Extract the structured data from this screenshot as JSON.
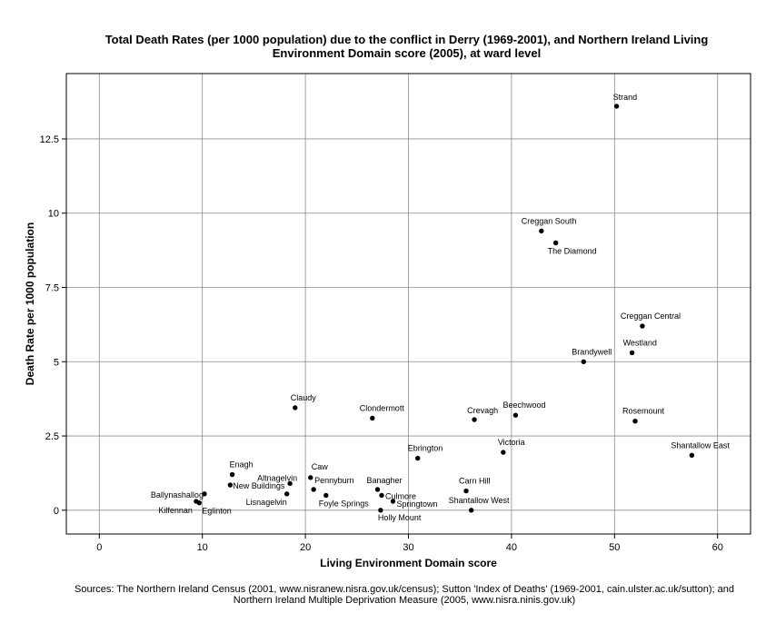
{
  "title_lines": [
    "Total Death Rates (per 1000 population) due to the conflict in Derry (1969-2001), and Northern Ireland Living",
    "Environment Domain score (2005), at ward level"
  ],
  "footer_lines": [
    "Sources: The Northern Ireland Census (2001, www.nisranew.nisra.gov.uk/census); Sutton 'Index of Deaths' (1969-2001, cain.ulster.ac.uk/sutton); and",
    "Northern Ireland Multiple Deprivation Measure (2005, www.nisra.ninis.gov.uk)"
  ],
  "chart_data": {
    "type": "scatter",
    "xlabel": "Living Environment Domain score",
    "ylabel": "Death Rate per 1000 population",
    "xlim": [
      -3.2,
      63.2
    ],
    "ylim": [
      -0.8,
      14.7
    ],
    "xticks": [
      0,
      10,
      20,
      30,
      40,
      50,
      60
    ],
    "xtick_labels": [
      "0",
      "10",
      "20",
      "30",
      "40",
      "50",
      "60"
    ],
    "yticks": [
      0,
      2.5,
      5,
      7.5,
      10,
      12.5
    ],
    "ytick_labels": [
      "0",
      "2.5",
      "5",
      "7.5",
      "10",
      "12.5"
    ],
    "grid": true,
    "marker_color": "#000000",
    "points": [
      {
        "label": "Strand",
        "x": 50.2,
        "y": 13.6
      },
      {
        "label": "Creggan South",
        "x": 42.9,
        "y": 9.4
      },
      {
        "label": "The Diamond",
        "x": 44.3,
        "y": 9.0
      },
      {
        "label": "Creggan Central",
        "x": 52.7,
        "y": 6.2
      },
      {
        "label": "Westland",
        "x": 51.7,
        "y": 5.3
      },
      {
        "label": "Brandywell",
        "x": 47.0,
        "y": 5.0
      },
      {
        "label": "Rosemount",
        "x": 52.0,
        "y": 3.0
      },
      {
        "label": "Beechwood",
        "x": 40.4,
        "y": 3.2
      },
      {
        "label": "Crevagh",
        "x": 36.4,
        "y": 3.05
      },
      {
        "label": "Shantallow East",
        "x": 57.5,
        "y": 1.85
      },
      {
        "label": "Victoria",
        "x": 39.2,
        "y": 1.95
      },
      {
        "label": "Ebrington",
        "x": 30.9,
        "y": 1.75
      },
      {
        "label": "Claudy",
        "x": 19.0,
        "y": 3.45
      },
      {
        "label": "Clondermott",
        "x": 26.5,
        "y": 3.1
      },
      {
        "label": "Carn Hill",
        "x": 35.6,
        "y": 0.65
      },
      {
        "label": "Shantallow West",
        "x": 36.1,
        "y": 0.0
      },
      {
        "label": "Banagher",
        "x": 27.0,
        "y": 0.7
      },
      {
        "label": "Culmore",
        "x": 27.4,
        "y": 0.5
      },
      {
        "label": "Springtown",
        "x": 28.5,
        "y": 0.3
      },
      {
        "label": "Holly Mount",
        "x": 27.3,
        "y": 0.0
      },
      {
        "label": "Caw",
        "x": 20.5,
        "y": 1.1
      },
      {
        "label": "Pennyburn",
        "x": 20.8,
        "y": 0.7
      },
      {
        "label": "Foyle Springs",
        "x": 22.0,
        "y": 0.5
      },
      {
        "label": "Enagh",
        "x": 12.9,
        "y": 1.2
      },
      {
        "label": "Altnagelvin",
        "x": 18.5,
        "y": 0.9
      },
      {
        "label": "New Buildings",
        "x": 12.7,
        "y": 0.85
      },
      {
        "label": "Lisnagelvin",
        "x": 18.2,
        "y": 0.55
      },
      {
        "label": "Ballynashallog",
        "x": 10.2,
        "y": 0.55
      },
      {
        "label": "Kilfennan",
        "x": 9.4,
        "y": 0.3
      },
      {
        "label": "Eglinton",
        "x": 9.7,
        "y": 0.25
      }
    ]
  }
}
